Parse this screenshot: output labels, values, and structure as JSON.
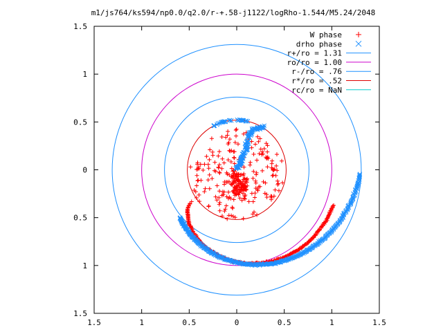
{
  "chart_data": {
    "type": "scatter",
    "title": "m1/js764/ks594/np0.0/q2.0/r-+.58-j1122/logRho-1.544/M5.24/2048",
    "xlim": [
      -1.5,
      1.5
    ],
    "ylim": [
      -1.5,
      1.5
    ],
    "x_tick_labels": [
      "1.5",
      "1",
      "0.5",
      "0",
      "0.5",
      "1",
      "1.5"
    ],
    "y_tick_labels": [
      "1.5",
      "1",
      "0.5",
      "0",
      "0.5",
      "1",
      "1.5"
    ],
    "x_ticks": [
      -1.5,
      -1,
      -0.5,
      0,
      0.5,
      1,
      1.5
    ],
    "y_ticks": [
      1.5,
      1,
      0.5,
      0,
      -0.5,
      -1,
      -1.5
    ],
    "grid": false,
    "legend_position": "top-right",
    "series": [
      {
        "name": "W phase",
        "kind": "points",
        "marker": "plus",
        "color": "#ff0000",
        "clusters": [
          {
            "shape": "disk",
            "cx": 0.0,
            "cy": -0.05,
            "r": 0.5,
            "count": 320
          },
          {
            "shape": "spiral_arm",
            "center": [
              0.0,
              0.0
            ],
            "r_start": 0.58,
            "r_end": 1.08,
            "theta_start_deg": 215,
            "theta_end_deg": 340,
            "count": 260
          }
        ]
      },
      {
        "name": "drho phase",
        "kind": "points",
        "marker": "cross",
        "color": "#1e90ff",
        "clusters": [
          {
            "shape": "arc",
            "center": [
              0.0,
              0.0
            ],
            "r": 0.52,
            "theta_start_deg": 75,
            "theta_end_deg": 120,
            "count": 30
          },
          {
            "shape": "plume",
            "points": [
              [
                0.0,
                0.0
              ],
              [
                0.05,
                0.1
              ],
              [
                0.1,
                0.22
              ],
              [
                0.12,
                0.35
              ],
              [
                0.18,
                0.42
              ],
              [
                0.28,
                0.45
              ]
            ],
            "count": 120
          },
          {
            "shape": "spiral_arm",
            "center": [
              0.0,
              0.0
            ],
            "r_start": 0.78,
            "r_end": 1.3,
            "theta_start_deg": 220,
            "theta_end_deg": 358,
            "count": 320
          }
        ]
      },
      {
        "name": "r+/ro = 1.31",
        "kind": "circle",
        "r": 1.31,
        "color": "#1e90ff"
      },
      {
        "name": "ro/ro = 1.00",
        "kind": "circle",
        "r": 1.0,
        "color": "#cc00cc"
      },
      {
        "name": "r-/ro = .76",
        "kind": "circle",
        "r": 0.76,
        "color": "#1e90ff"
      },
      {
        "name": "r*/ro = .52",
        "kind": "circle",
        "r": 0.52,
        "color": "#dd0000"
      },
      {
        "name": "rc/ro = NaN",
        "kind": "circle",
        "r": null,
        "color": "#00cccc"
      }
    ]
  }
}
